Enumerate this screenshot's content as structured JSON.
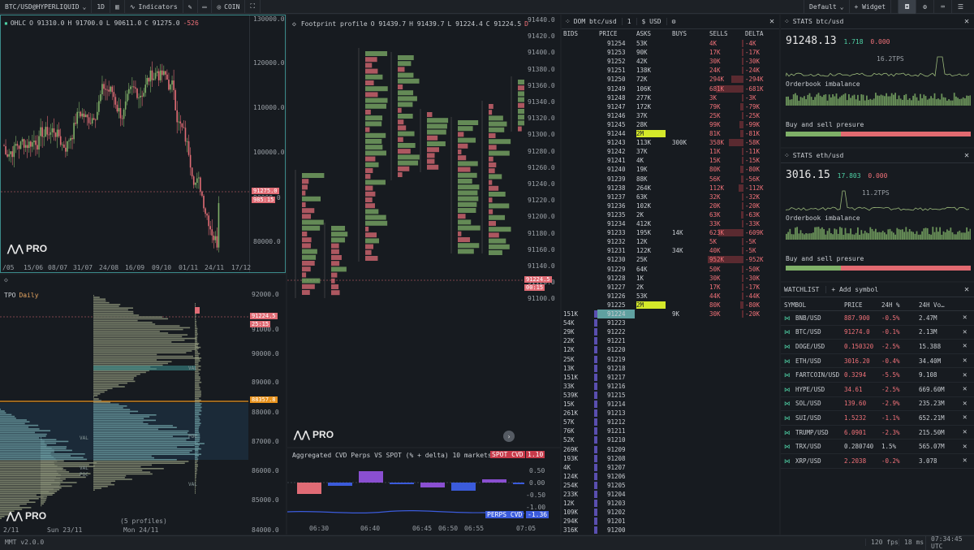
{
  "topbar": {
    "symbol": "BTC/USD@HYPERLIQUID",
    "timeframe": "1D",
    "indicators": "Indicators",
    "coin": "COIN",
    "layout": "Default",
    "widget": "+ Widget"
  },
  "ohlc": {
    "label": "OHLC",
    "o": "O 91310.0",
    "h": "H 91700.0",
    "l": "L 90611.0",
    "c": "C 91275.0",
    "chg": "-526",
    "price_tag": "91275.0",
    "time_tag": "985:15",
    "y_ticks": [
      "130000.0",
      "120000.0",
      "110000.0",
      "100000.0",
      "90000.0",
      "80000.0"
    ],
    "x_ticks": [
      "/05",
      "15/06",
      "08/07",
      "31/07",
      "24/08",
      "16/09",
      "09/10",
      "01/11",
      "24/11",
      "17/12"
    ],
    "logo": "PRO"
  },
  "tpo": {
    "title": "TPO",
    "tf": "Daily",
    "price_tag": "91224.5",
    "time_tag": "25:15",
    "orange_tag": "88357.8",
    "y_ticks": [
      "92000.0",
      "91000.0",
      "90000.0",
      "89000.0",
      "88000.0",
      "87000.0",
      "86000.0",
      "85000.0",
      "84000.0"
    ],
    "x_ticks": [
      "2/11",
      "Sun 23/11",
      "Mon 24/11"
    ],
    "profiles": "(5 profiles)",
    "logo": "PRO",
    "labels": [
      "VAL",
      "VAL",
      "POC",
      "POC",
      "VAL",
      "VAL"
    ]
  },
  "footprint": {
    "title": "Footprint profile",
    "o": "O 91439.7",
    "h": "H 91439.7",
    "l": "L 91224.4",
    "c": "C 91224.5",
    "chg": "D",
    "y_ticks": [
      "91440.0",
      "91420.0",
      "91400.0",
      "91380.0",
      "91360.0",
      "91340.0",
      "91320.0",
      "91300.0",
      "91280.0",
      "91260.0",
      "91240.0",
      "91220.0",
      "91200.0",
      "91180.0",
      "91160.0",
      "91140.0",
      "91120.0",
      "91100.0"
    ],
    "price_tag": "91224.5",
    "time_tag": "00:15",
    "logo": "PRO"
  },
  "cvd": {
    "title": "Aggregated CVD Perps VS SPOT (% + delta) 10 markets",
    "spot_label": "SPOT CVD",
    "spot_val": "1.10",
    "perps_label": "PERPS CVD",
    "perps_val": "-1.36",
    "y_ticks": [
      "0.50",
      "0.00",
      "-0.50",
      "-1.00"
    ],
    "x_ticks": [
      "06:30",
      "06:40",
      "06:45",
      "06:50",
      "06:55",
      "07:05"
    ]
  },
  "dom": {
    "title": "DOM btc/usd",
    "agg": "1",
    "unit": "$ USD",
    "cols": [
      "BIDS",
      "PRICE",
      "ASKS",
      "BUYS",
      "SELLS",
      "DELTA"
    ],
    "rows": [
      [
        "",
        "91254",
        "53K",
        "",
        "4K",
        "-4K"
      ],
      [
        "",
        "91253",
        "90K",
        "",
        "17K",
        "-17K"
      ],
      [
        "",
        "91252",
        "42K",
        "",
        "30K",
        "-30K"
      ],
      [
        "",
        "91251",
        "138K",
        "",
        "24K",
        "-24K"
      ],
      [
        "",
        "91250",
        "72K",
        "",
        "294K",
        "-294K"
      ],
      [
        "",
        "91249",
        "106K",
        "",
        "681K",
        "-681K"
      ],
      [
        "",
        "91248",
        "277K",
        "",
        "3K",
        "-3K"
      ],
      [
        "",
        "91247",
        "172K",
        "",
        "79K",
        "-79K"
      ],
      [
        "",
        "91246",
        "37K",
        "",
        "25K",
        "-25K"
      ],
      [
        "",
        "91245",
        "28K",
        "",
        "99K",
        "-99K"
      ],
      [
        "",
        "91244",
        "2M",
        "",
        "81K",
        "-81K"
      ],
      [
        "",
        "91243",
        "113K",
        "300K",
        "358K",
        "-58K"
      ],
      [
        "",
        "91242",
        "37K",
        "",
        "11K",
        "-11K"
      ],
      [
        "",
        "91241",
        "4K",
        "",
        "15K",
        "-15K"
      ],
      [
        "",
        "91240",
        "19K",
        "",
        "80K",
        "-80K"
      ],
      [
        "",
        "91239",
        "88K",
        "",
        "56K",
        "-56K"
      ],
      [
        "",
        "91238",
        "264K",
        "",
        "112K",
        "-112K"
      ],
      [
        "",
        "91237",
        "63K",
        "",
        "32K",
        "-32K"
      ],
      [
        "",
        "91236",
        "102K",
        "",
        "20K",
        "-20K"
      ],
      [
        "",
        "91235",
        "2K",
        "",
        "63K",
        "-63K"
      ],
      [
        "",
        "91234",
        "412K",
        "",
        "33K",
        "-33K"
      ],
      [
        "",
        "91233",
        "195K",
        "14K",
        "623K",
        "-609K"
      ],
      [
        "",
        "91232",
        "12K",
        "",
        "5K",
        "-5K"
      ],
      [
        "",
        "91231",
        "122K",
        "34K",
        "40K",
        "-5K"
      ],
      [
        "",
        "91230",
        "25K",
        "",
        "952K",
        "-952K"
      ],
      [
        "",
        "91229",
        "64K",
        "",
        "50K",
        "-50K"
      ],
      [
        "",
        "91228",
        "1K",
        "",
        "30K",
        "-30K"
      ],
      [
        "",
        "91227",
        "2K",
        "",
        "17K",
        "-17K"
      ],
      [
        "",
        "91226",
        "53K",
        "",
        "44K",
        "-44K"
      ],
      [
        "",
        "91225",
        "2M",
        "",
        "80K",
        "-80K"
      ],
      [
        "151K",
        "91224",
        "",
        "9K",
        "30K",
        "-20K"
      ],
      [
        "54K",
        "91223",
        "",
        "",
        "",
        ""
      ],
      [
        "29K",
        "91222",
        "",
        "",
        "",
        ""
      ],
      [
        "22K",
        "91221",
        "",
        "",
        "",
        ""
      ],
      [
        "12K",
        "91220",
        "",
        "",
        "",
        ""
      ],
      [
        "25K",
        "91219",
        "",
        "",
        "",
        ""
      ],
      [
        "13K",
        "91218",
        "",
        "",
        "",
        ""
      ],
      [
        "151K",
        "91217",
        "",
        "",
        "",
        ""
      ],
      [
        "33K",
        "91216",
        "",
        "",
        "",
        ""
      ],
      [
        "539K",
        "91215",
        "",
        "",
        "",
        ""
      ],
      [
        "15K",
        "91214",
        "",
        "",
        "",
        ""
      ],
      [
        "261K",
        "91213",
        "",
        "",
        "",
        ""
      ],
      [
        "57K",
        "91212",
        "",
        "",
        "",
        ""
      ],
      [
        "76K",
        "91211",
        "",
        "",
        "",
        ""
      ],
      [
        "52K",
        "91210",
        "",
        "",
        "",
        ""
      ],
      [
        "269K",
        "91209",
        "",
        "",
        "",
        ""
      ],
      [
        "193K",
        "91208",
        "",
        "",
        "",
        ""
      ],
      [
        "4K",
        "91207",
        "",
        "",
        "",
        ""
      ],
      [
        "124K",
        "91206",
        "",
        "",
        "",
        ""
      ],
      [
        "254K",
        "91205",
        "",
        "",
        "",
        ""
      ],
      [
        "233K",
        "91204",
        "",
        "",
        "",
        ""
      ],
      [
        "12K",
        "91203",
        "",
        "",
        "",
        ""
      ],
      [
        "109K",
        "91202",
        "",
        "",
        "",
        ""
      ],
      [
        "294K",
        "91201",
        "",
        "",
        "",
        ""
      ],
      [
        "316K",
        "91200",
        "",
        "",
        "",
        ""
      ]
    ]
  },
  "stats_btc": {
    "title": "STATS btc/usd",
    "price": "91248.13",
    "chg": "1.718",
    "pct": "0.000",
    "tps": "16.2TPS",
    "imbalance": "Orderbook imbalance",
    "pressure": "Buy and sell presure"
  },
  "stats_eth": {
    "title": "STATS eth/usd",
    "price": "3016.15",
    "chg": "17.803",
    "pct": "0.000",
    "tps": "11.2TPS",
    "imbalance": "Orderbook imbalance",
    "pressure": "Buy and sell presure"
  },
  "watchlist": {
    "title": "WATCHLIST",
    "add": "+ Add symbol",
    "cols": [
      "SYMBOL",
      "PRICE",
      "24H %",
      "24H Vo…"
    ],
    "rows": [
      [
        "BNB/USD",
        "887.900",
        "-0.5%",
        "2.47M"
      ],
      [
        "BTC/USD",
        "91274.0",
        "-0.1%",
        "2.13M"
      ],
      [
        "DOGE/USD",
        "0.150320",
        "-2.5%",
        "15.388"
      ],
      [
        "ETH/USD",
        "3016.20",
        "-0.4%",
        "34.40M"
      ],
      [
        "FARTCOIN/USD",
        "0.3294",
        "-5.5%",
        "9.108"
      ],
      [
        "HYPE/USD",
        "34.61",
        "-2.5%",
        "669.60M"
      ],
      [
        "SOL/USD",
        "139.60",
        "-2.9%",
        "235.23M"
      ],
      [
        "SUI/USD",
        "1.5232",
        "-1.1%",
        "652.21M"
      ],
      [
        "TRUMP/USD",
        "6.0901",
        "-2.3%",
        "215.50M"
      ],
      [
        "TRX/USD",
        "0.280740",
        "1.5%",
        "565.07M"
      ],
      [
        "XRP/USD",
        "2.2038",
        "-0.2%",
        "3.078"
      ]
    ]
  },
  "status": {
    "version": "MMT v2.0.0",
    "fps": "120 fps",
    "ms": "18 ms",
    "time": "07:34:45 UTC"
  }
}
